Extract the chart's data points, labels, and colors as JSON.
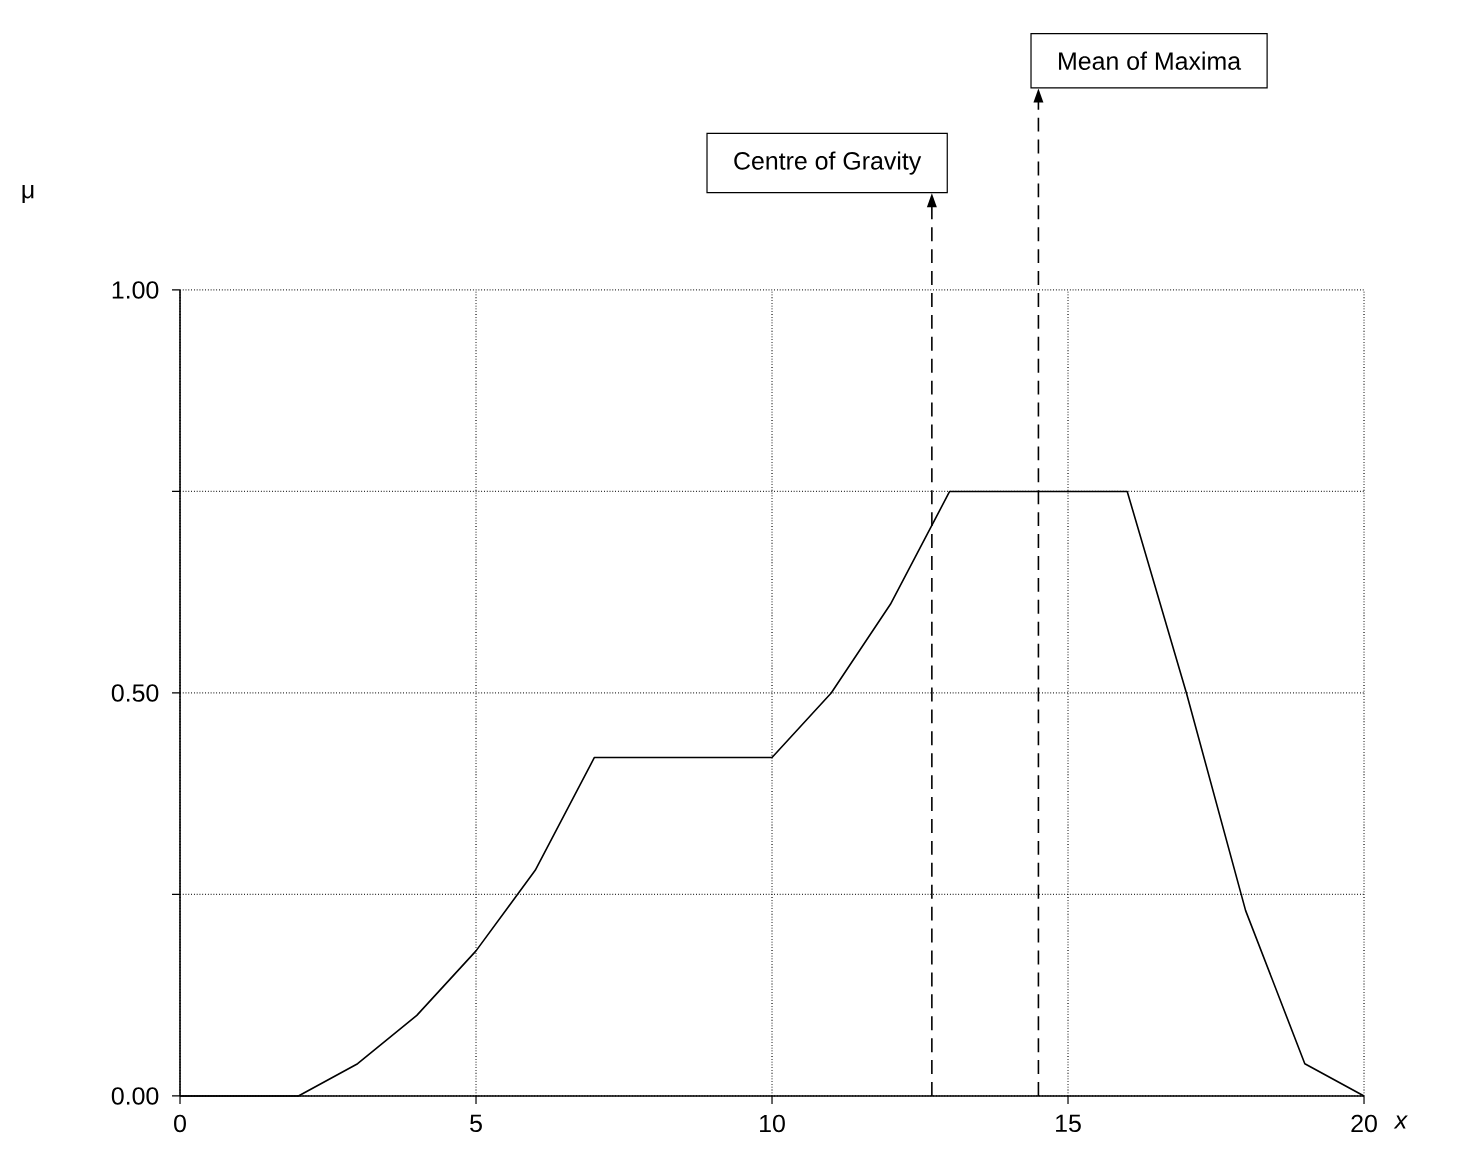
{
  "chart_data": {
    "type": "line",
    "xlabel": "x",
    "ylabel": "μ",
    "x": [
      0,
      2,
      3,
      4,
      5,
      6,
      7,
      10,
      11,
      12,
      13,
      16,
      17,
      18,
      19,
      20
    ],
    "values": [
      0,
      0,
      0.04,
      0.1,
      0.18,
      0.28,
      0.42,
      0.42,
      0.5,
      0.61,
      0.75,
      0.75,
      0.5,
      0.23,
      0.04,
      0
    ],
    "color": "#000000",
    "line_style": "solid",
    "marker": "none",
    "xlim": [
      0,
      20
    ],
    "xticks": [
      0,
      5,
      10,
      15,
      20
    ],
    "ylim": [
      0,
      1
    ],
    "yticks": [
      {
        "value": 0,
        "label": "0.00"
      },
      {
        "value": 0.25,
        "label": null
      },
      {
        "value": 0.5,
        "label": "0.50"
      },
      {
        "value": 0.75,
        "label": null
      },
      {
        "value": 1,
        "label": "1.00"
      }
    ],
    "grid": true,
    "ref_lines": [
      {
        "axis": "x",
        "value": 12.7,
        "label": "Centre of Gravity",
        "line_style": "dashed"
      },
      {
        "axis": "x",
        "value": 14.5,
        "label": "Mean of Maxima",
        "line_style": "dashed"
      }
    ]
  }
}
